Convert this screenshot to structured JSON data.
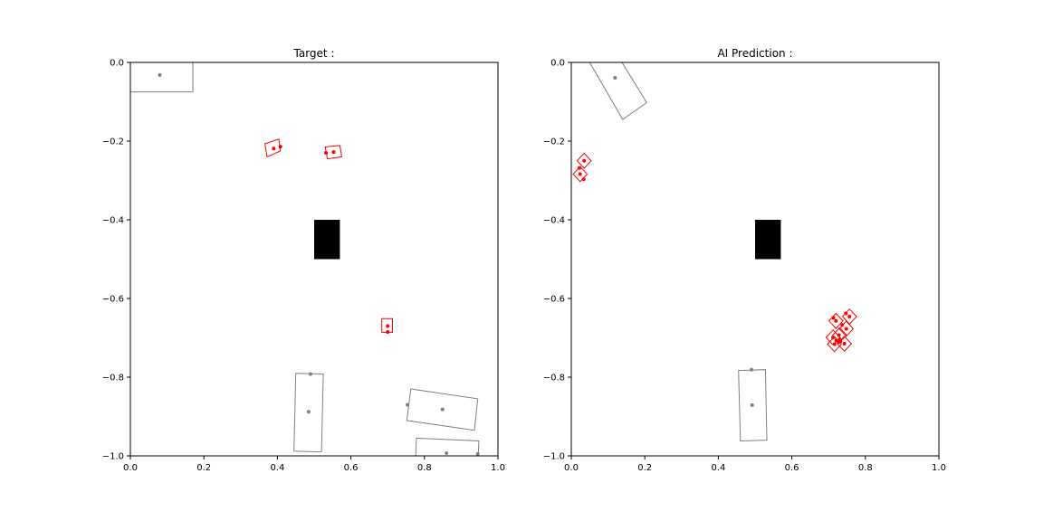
{
  "chart_data": [
    {
      "type": "scatter",
      "title": "Target :",
      "xlim": [
        0.0,
        1.0
      ],
      "ylim": [
        -1.0,
        0.0
      ],
      "xticks": [
        "0.0",
        "0.2",
        "0.4",
        "0.6",
        "0.8",
        "1.0"
      ],
      "yticks": [
        "0.0",
        "−0.2",
        "−0.4",
        "−0.6",
        "−0.8",
        "−1.0"
      ],
      "xtick_values": [
        0.0,
        0.2,
        0.4,
        0.6,
        0.8,
        1.0
      ],
      "ytick_values": [
        0.0,
        -0.2,
        -0.4,
        -0.6,
        -0.8,
        -1.0
      ],
      "grid": false,
      "obstacle": {
        "x": [
          0.5,
          0.57
        ],
        "y": [
          -0.5,
          -0.4
        ],
        "color": "#000000"
      },
      "gray_boxes": [
        {
          "corners": [
            [
              0.0,
              0.0
            ],
            [
              0.17,
              0.0
            ],
            [
              0.17,
              -0.075
            ],
            [
              0.0,
              -0.075
            ]
          ],
          "points": [
            [
              0.08,
              -0.032
            ]
          ]
        },
        {
          "corners": [
            [
              0.45,
              -0.79
            ],
            [
              0.525,
              -0.792
            ],
            [
              0.52,
              -0.99
            ],
            [
              0.445,
              -0.988
            ]
          ],
          "points": [
            [
              0.49,
              -0.792
            ],
            [
              0.485,
              -0.888
            ]
          ]
        },
        {
          "corners": [
            [
              0.763,
              -0.83
            ],
            [
              0.945,
              -0.855
            ],
            [
              0.936,
              -0.935
            ],
            [
              0.752,
              -0.91
            ]
          ],
          "points": [
            [
              0.754,
              -0.87
            ],
            [
              0.849,
              -0.882
            ]
          ]
        },
        {
          "corners": [
            [
              0.778,
              -0.955
            ],
            [
              0.948,
              -0.962
            ],
            [
              0.946,
              -1.01
            ],
            [
              0.776,
              -1.005
            ]
          ],
          "points": [
            [
              0.86,
              -0.993
            ],
            [
              0.945,
              -0.995
            ]
          ]
        }
      ],
      "red_boxes": [
        {
          "corners": [
            [
              0.366,
              -0.207
            ],
            [
              0.404,
              -0.195
            ],
            [
              0.408,
              -0.225
            ],
            [
              0.372,
              -0.24
            ]
          ],
          "points": [
            [
              0.39,
              -0.219
            ],
            [
              0.408,
              -0.214
            ]
          ]
        },
        {
          "corners": [
            [
              0.53,
              -0.215
            ],
            [
              0.57,
              -0.211
            ],
            [
              0.575,
              -0.24
            ],
            [
              0.536,
              -0.245
            ]
          ],
          "points": [
            [
              0.532,
              -0.23
            ],
            [
              0.553,
              -0.228
            ]
          ]
        },
        {
          "corners": [
            [
              0.684,
              -0.651
            ],
            [
              0.713,
              -0.651
            ],
            [
              0.713,
              -0.686
            ],
            [
              0.684,
              -0.686
            ]
          ],
          "points": [
            [
              0.7,
              -0.67
            ],
            [
              0.7,
              -0.685
            ]
          ]
        }
      ],
      "gray_color": "#808080",
      "red_color": "#ff0000"
    },
    {
      "type": "scatter",
      "title": "AI Prediction :",
      "xlim": [
        0.0,
        1.0
      ],
      "ylim": [
        -1.0,
        0.0
      ],
      "xticks": [
        "0.0",
        "0.2",
        "0.4",
        "0.6",
        "0.8",
        "1.0"
      ],
      "yticks": [
        "0.0",
        "−0.2",
        "−0.4",
        "−0.6",
        "−0.8",
        "−1.0"
      ],
      "xtick_values": [
        0.0,
        0.2,
        0.4,
        0.6,
        0.8,
        1.0
      ],
      "ytick_values": [
        0.0,
        -0.2,
        -0.4,
        -0.6,
        -0.8,
        -1.0
      ],
      "grid": false,
      "obstacle": {
        "x": [
          0.5,
          0.57
        ],
        "y": [
          -0.5,
          -0.4
        ],
        "color": "#000000"
      },
      "gray_boxes": [
        {
          "corners": [
            [
              0.05,
              0.0
            ],
            [
              0.14,
              -0.145
            ],
            [
              0.205,
              -0.102
            ],
            [
              0.138,
              0.0
            ]
          ],
          "points": [
            [
              0.119,
              -0.039
            ]
          ]
        },
        {
          "corners": [
            [
              0.455,
              -0.783
            ],
            [
              0.528,
              -0.781
            ],
            [
              0.532,
              -0.96
            ],
            [
              0.46,
              -0.962
            ]
          ],
          "points": [
            [
              0.49,
              -0.781
            ],
            [
              0.492,
              -0.871
            ]
          ]
        }
      ],
      "red_boxes": [
        {
          "corners": [
            [
              0.035,
              -0.231
            ],
            [
              0.054,
              -0.25
            ],
            [
              0.035,
              -0.269
            ],
            [
              0.016,
              -0.25
            ]
          ],
          "points": [
            [
              0.035,
              -0.25
            ],
            [
              0.022,
              -0.268
            ]
          ]
        },
        {
          "corners": [
            [
              0.024,
              -0.265
            ],
            [
              0.043,
              -0.284
            ],
            [
              0.024,
              -0.303
            ],
            [
              0.005,
              -0.284
            ]
          ],
          "points": [
            [
              0.024,
              -0.284
            ],
            [
              0.034,
              -0.297
            ]
          ]
        },
        {
          "corners": [
            [
              0.757,
              -0.627
            ],
            [
              0.776,
              -0.646
            ],
            [
              0.757,
              -0.665
            ],
            [
              0.738,
              -0.646
            ]
          ],
          "points": [
            [
              0.757,
              -0.646
            ],
            [
              0.747,
              -0.638
            ]
          ]
        },
        {
          "corners": [
            [
              0.72,
              -0.638
            ],
            [
              0.739,
              -0.657
            ],
            [
              0.72,
              -0.676
            ],
            [
              0.701,
              -0.657
            ]
          ],
          "points": [
            [
              0.72,
              -0.657
            ],
            [
              0.713,
              -0.649
            ]
          ]
        },
        {
          "corners": [
            [
              0.748,
              -0.658
            ],
            [
              0.767,
              -0.677
            ],
            [
              0.748,
              -0.696
            ],
            [
              0.729,
              -0.677
            ]
          ],
          "points": [
            [
              0.748,
              -0.677
            ],
            [
              0.737,
              -0.667
            ]
          ]
        },
        {
          "corners": [
            [
              0.73,
              -0.674
            ],
            [
              0.749,
              -0.693
            ],
            [
              0.73,
              -0.712
            ],
            [
              0.711,
              -0.693
            ]
          ],
          "points": [
            [
              0.728,
              -0.693
            ],
            [
              0.73,
              -0.704
            ]
          ]
        },
        {
          "corners": [
            [
              0.712,
              -0.68
            ],
            [
              0.731,
              -0.699
            ],
            [
              0.712,
              -0.718
            ],
            [
              0.693,
              -0.699
            ]
          ],
          "points": [
            [
              0.712,
              -0.699
            ],
            [
              0.721,
              -0.707
            ]
          ]
        },
        {
          "corners": [
            [
              0.743,
              -0.696
            ],
            [
              0.762,
              -0.715
            ],
            [
              0.743,
              -0.734
            ],
            [
              0.724,
              -0.715
            ]
          ],
          "points": [
            [
              0.743,
              -0.715
            ],
            [
              0.732,
              -0.709
            ]
          ]
        },
        {
          "corners": [
            [
              0.716,
              -0.697
            ],
            [
              0.735,
              -0.716
            ],
            [
              0.716,
              -0.735
            ],
            [
              0.697,
              -0.716
            ]
          ],
          "points": [
            [
              0.716,
              -0.716
            ],
            [
              0.727,
              -0.711
            ]
          ]
        }
      ],
      "gray_color": "#808080",
      "red_color": "#ff0000"
    }
  ]
}
